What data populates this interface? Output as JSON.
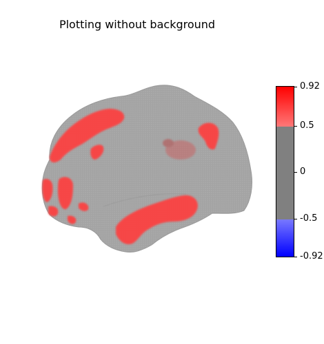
{
  "figure": {
    "title": "Plotting without background"
  },
  "colorbar": {
    "ticks": [
      {
        "label": "0.92",
        "value": 0.92
      },
      {
        "label": "0.5",
        "value": 0.5
      },
      {
        "label": "0",
        "value": 0
      },
      {
        "label": "-0.5",
        "value": -0.5
      },
      {
        "label": "-0.92",
        "value": -0.92
      }
    ],
    "vmin": -0.92,
    "vmax": 0.92,
    "threshold": 0.5,
    "colors": {
      "top": "#ff0000",
      "upper_threshold": "#ff7878",
      "neutral": "#808080",
      "lower_threshold": "#7878ff",
      "bottom": "#0000ff"
    }
  },
  "brain": {
    "surface_color": "#a8a8a8",
    "activation_color": "#ff3c3c"
  }
}
